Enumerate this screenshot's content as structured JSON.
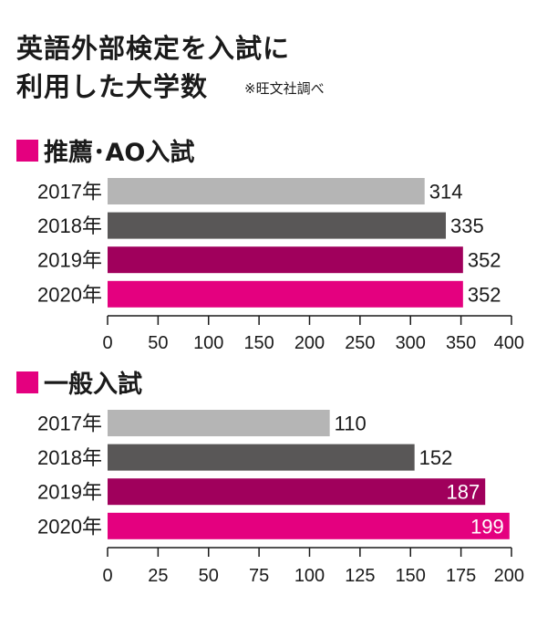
{
  "title": {
    "line1": "英語外部検定を入試に",
    "line2": "利用した大学数",
    "source": "※旺文社調べ"
  },
  "colors": {
    "2017": "#b5b5b5",
    "2018": "#595757",
    "2019": "#a0005c",
    "2020": "#e4007f",
    "marker": "#e4007f"
  },
  "chart_data": [
    {
      "type": "bar",
      "orientation": "horizontal",
      "title": "推薦･AO入試",
      "categories": [
        "2017年",
        "2018年",
        "2019年",
        "2020年"
      ],
      "values": [
        314,
        335,
        352,
        352
      ],
      "xlim": [
        0,
        400
      ],
      "xticks": [
        0,
        50,
        100,
        150,
        200,
        250,
        300,
        350,
        400
      ],
      "label_position": [
        "outside",
        "outside",
        "outside",
        "outside"
      ]
    },
    {
      "type": "bar",
      "orientation": "horizontal",
      "title": "一般入試",
      "categories": [
        "2017年",
        "2018年",
        "2019年",
        "2020年"
      ],
      "values": [
        110,
        152,
        187,
        199
      ],
      "xlim": [
        0,
        200
      ],
      "xticks": [
        0,
        25,
        50,
        75,
        100,
        125,
        150,
        175,
        200
      ],
      "label_position": [
        "outside",
        "outside",
        "inside",
        "inside"
      ]
    }
  ]
}
